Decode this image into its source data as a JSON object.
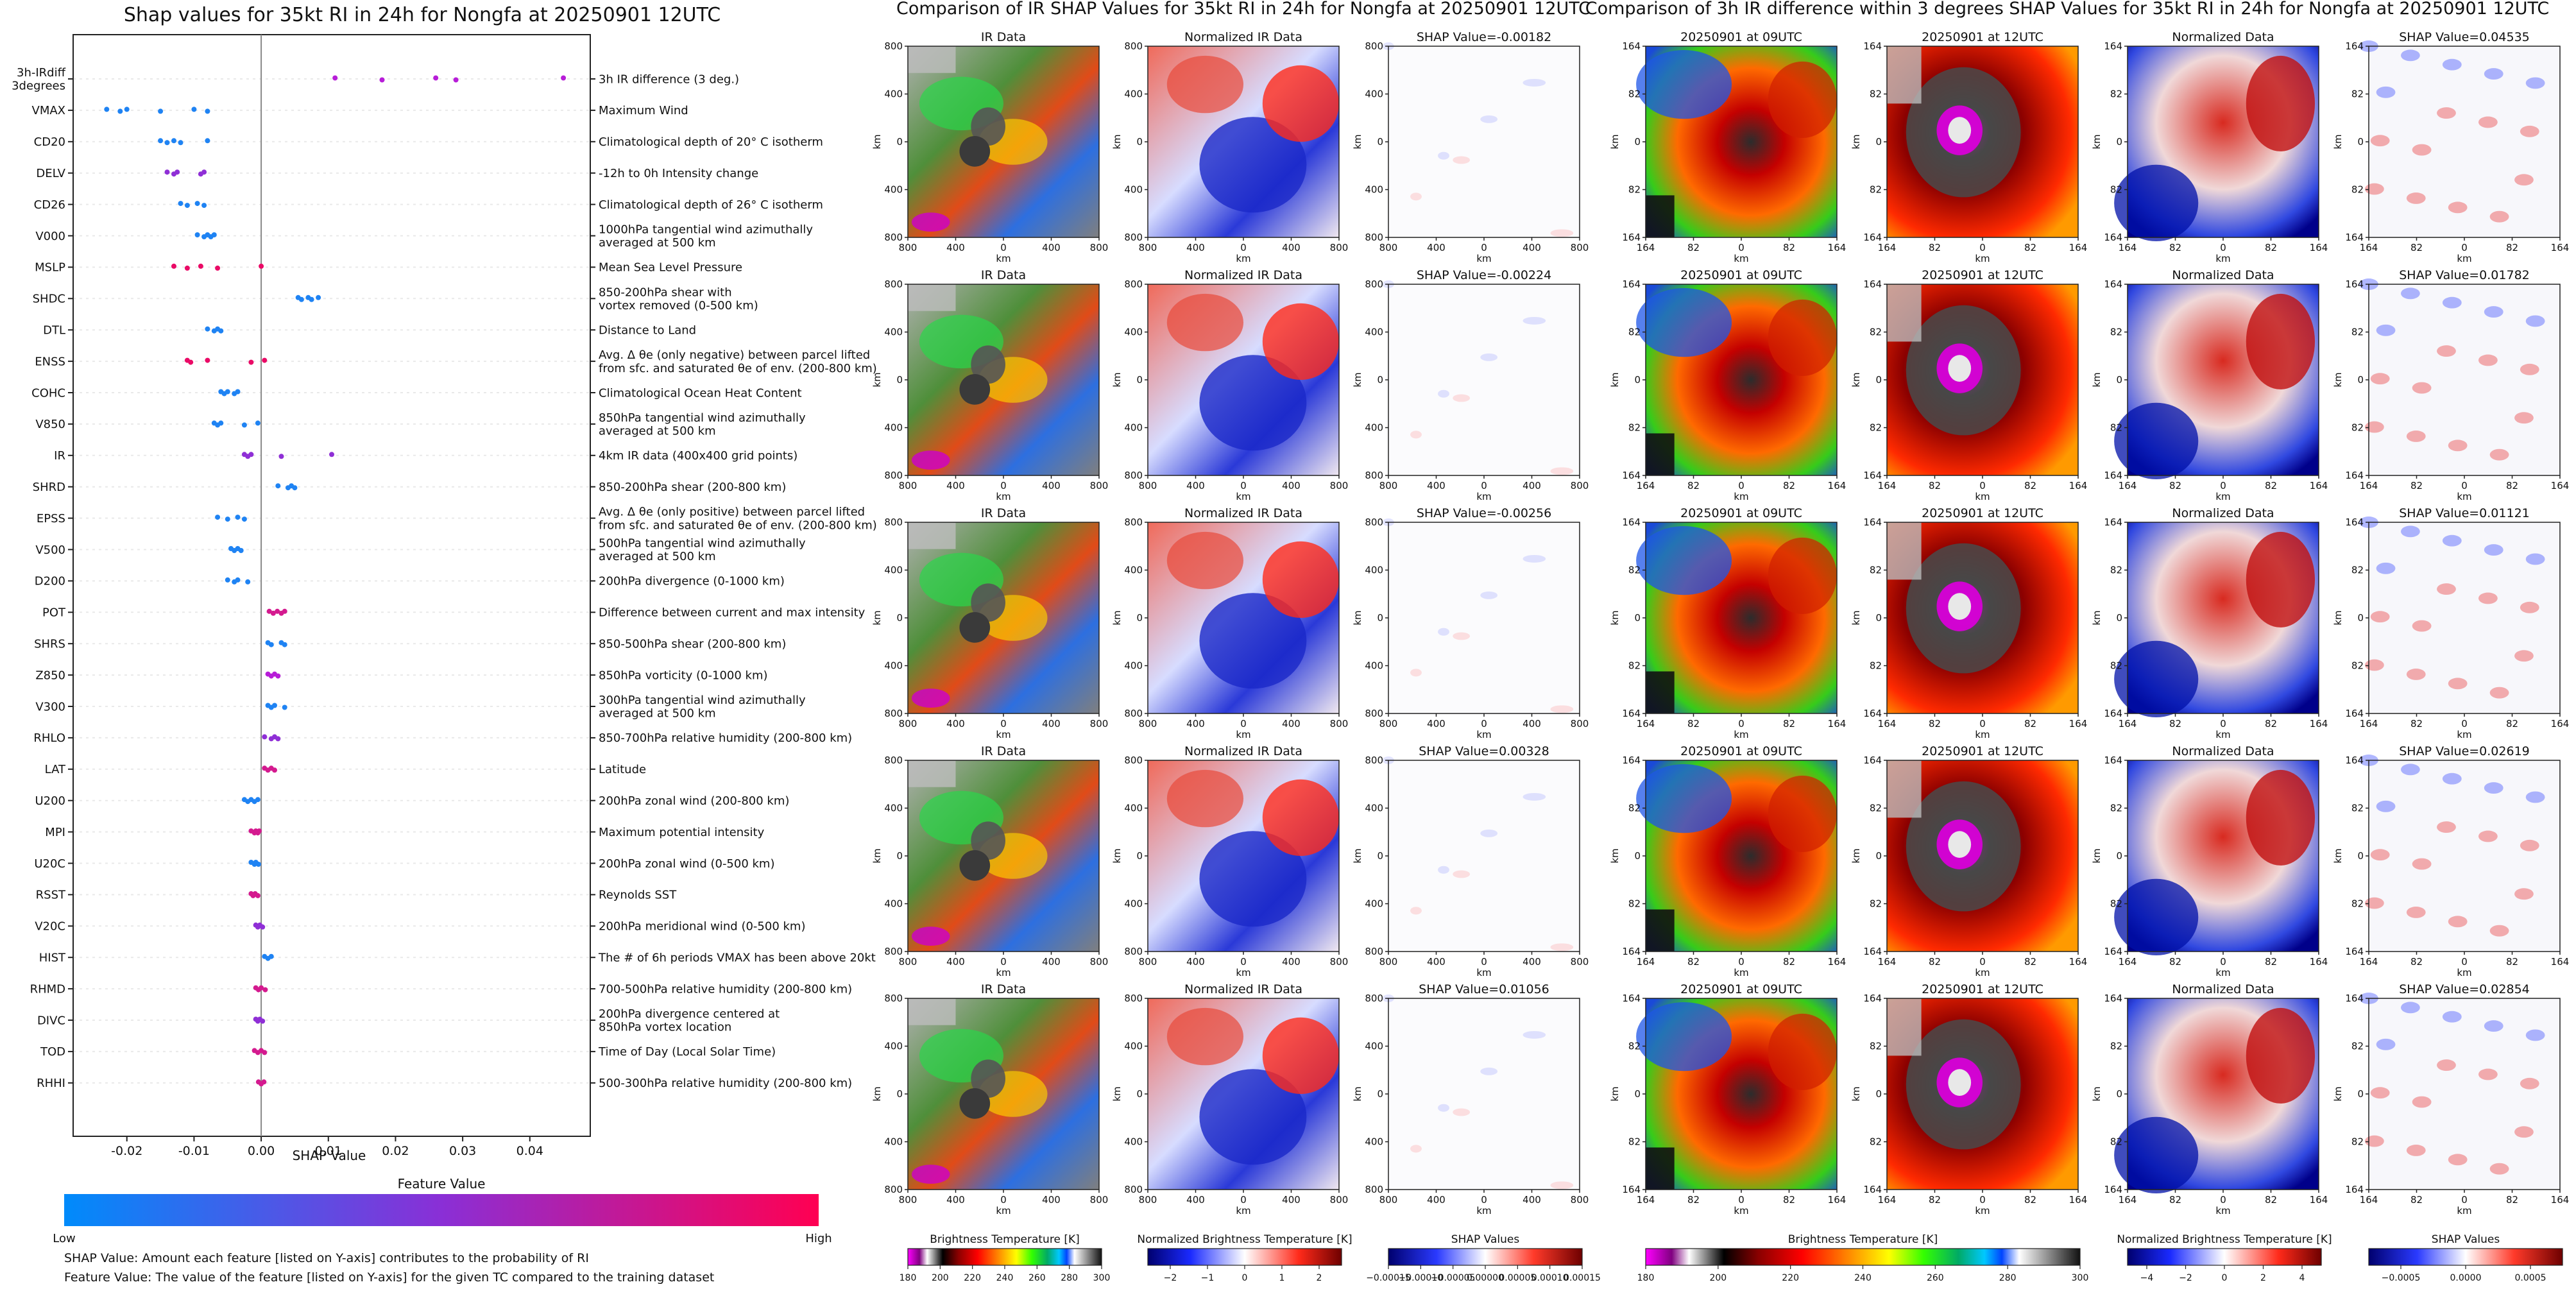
{
  "chart_data": [
    {
      "type": "scatter",
      "title": "Shap values for 35kt RI in 24h for Nongfa at 20250901 12UTC",
      "xlabel": "SHAP Value",
      "xlim": [
        -0.028,
        0.049
      ],
      "xticks": [
        "-0.02",
        "-0.01",
        "0.00",
        "0.01",
        "0.02",
        "0.03",
        "0.04"
      ],
      "xtick_values": [
        -0.02,
        -0.01,
        0.0,
        0.01,
        0.02,
        0.03,
        0.04
      ],
      "color_scale": {
        "low": "#008bfb",
        "high": "#ff0052"
      },
      "colorbar": {
        "title": "Feature Value",
        "low_label": "Low",
        "high_label": "High"
      },
      "features": [
        {
          "code": "3h-IRdiff\n3degrees",
          "description": "3h IR difference (3 deg.)",
          "color": "#b71dd8",
          "shap": [
            0.011,
            0.018,
            0.026,
            0.029,
            0.045
          ]
        },
        {
          "code": "VMAX",
          "description": "Maximum Wind",
          "color": "#1f83f3",
          "shap": [
            -0.023,
            -0.021,
            -0.02,
            -0.015,
            -0.01,
            -0.008
          ]
        },
        {
          "code": "CD20",
          "description": "Climatological depth of 20° C isotherm",
          "color": "#1f83f3",
          "shap": [
            -0.015,
            -0.014,
            -0.013,
            -0.012,
            -0.008
          ]
        },
        {
          "code": "DELV",
          "description": "-12h to 0h Intensity change",
          "color": "#8f2fd6",
          "shap": [
            -0.014,
            -0.013,
            -0.0125,
            -0.009,
            -0.0085
          ]
        },
        {
          "code": "CD26",
          "description": "Climatological depth of 26° C isotherm",
          "color": "#1f83f3",
          "shap": [
            -0.012,
            -0.011,
            -0.0095,
            -0.0085
          ]
        },
        {
          "code": "V000",
          "description": "1000hPa tangential wind azimuthally\naveraged at 500 km",
          "color": "#1f83f3",
          "shap": [
            -0.0095,
            -0.0085,
            -0.008,
            -0.0075,
            -0.007
          ]
        },
        {
          "code": "MSLP",
          "description": "Mean Sea Level Pressure",
          "color": "#ea0a66",
          "shap": [
            -0.013,
            -0.011,
            -0.009,
            -0.0065,
            0.0
          ]
        },
        {
          "code": "SHDC",
          "description": "850-200hPa shear with\nvortex removed (0-500 km)",
          "color": "#1f83f3",
          "shap": [
            0.0055,
            0.006,
            0.007,
            0.0075,
            0.0085
          ]
        },
        {
          "code": "DTL",
          "description": "Distance to Land",
          "color": "#1f83f3",
          "shap": [
            -0.008,
            -0.007,
            -0.0065,
            -0.006
          ]
        },
        {
          "code": "ENSS",
          "description": "Avg. Δ θe (only negative) between parcel lifted\nfrom sfc. and saturated θe of env. (200-800 km)",
          "color": "#ea0a66",
          "shap": [
            -0.011,
            -0.0105,
            -0.008,
            -0.0015,
            0.0005
          ]
        },
        {
          "code": "COHC",
          "description": "Climatological Ocean Heat Content",
          "color": "#1f83f3",
          "shap": [
            -0.006,
            -0.0055,
            -0.005,
            -0.004,
            -0.0035
          ]
        },
        {
          "code": "V850",
          "description": "850hPa tangential wind azimuthally\naveraged at 500 km",
          "color": "#1f83f3",
          "shap": [
            -0.007,
            -0.0065,
            -0.006,
            -0.0025,
            -0.0005
          ]
        },
        {
          "code": "IR",
          "description": "4km IR data (400x400 grid points)",
          "color": "#8f2fd6",
          "shap": [
            -0.0025,
            -0.002,
            -0.0015,
            0.003,
            0.0105
          ]
        },
        {
          "code": "SHRD",
          "description": "850-200hPa shear (200-800 km)",
          "color": "#1f83f3",
          "shap": [
            0.0025,
            0.004,
            0.0045,
            0.005
          ]
        },
        {
          "code": "EPSS",
          "description": "Avg. Δ θe (only positive) between parcel lifted\nfrom sfc. and saturated θe of env. (200-800 km)",
          "color": "#1f83f3",
          "shap": [
            -0.0065,
            -0.005,
            -0.0035,
            -0.0025
          ]
        },
        {
          "code": "V500",
          "description": "500hPa tangential wind azimuthally\naveraged at 500 km",
          "color": "#1f83f3",
          "shap": [
            -0.0045,
            -0.004,
            -0.0035,
            -0.003
          ]
        },
        {
          "code": "D200",
          "description": "200hPa divergence (0-1000 km)",
          "color": "#1f83f3",
          "shap": [
            -0.005,
            -0.004,
            -0.0035,
            -0.002
          ]
        },
        {
          "code": "POT",
          "description": "Difference between current and max intensity",
          "color": "#d41a8f",
          "shap": [
            0.0012,
            0.0018,
            0.0024,
            0.003,
            0.0035
          ]
        },
        {
          "code": "SHRS",
          "description": "850-500hPa shear (200-800 km)",
          "color": "#1f83f3",
          "shap": [
            0.001,
            0.0015,
            0.003,
            0.0035
          ]
        },
        {
          "code": "Z850",
          "description": "850hPa vorticity (0-1000 km)",
          "color": "#b71dd8",
          "shap": [
            0.001,
            0.0015,
            0.002,
            0.0025
          ]
        },
        {
          "code": "V300",
          "description": "300hPa tangential wind azimuthally\naveraged at 500 km",
          "color": "#1f83f3",
          "shap": [
            0.001,
            0.0015,
            0.002,
            0.0035
          ]
        },
        {
          "code": "RHLO",
          "description": "850-700hPa relative humidity (200-800 km)",
          "color": "#8f2fd6",
          "shap": [
            0.0005,
            0.0015,
            0.002,
            0.0025
          ]
        },
        {
          "code": "LAT",
          "description": "Latitude",
          "color": "#d41a8f",
          "shap": [
            0.0005,
            0.001,
            0.0015,
            0.002
          ]
        },
        {
          "code": "U200",
          "description": "200hPa zonal wind (200-800 km)",
          "color": "#1f83f3",
          "shap": [
            -0.0025,
            -0.002,
            -0.0015,
            -0.001,
            -0.0005
          ]
        },
        {
          "code": "MPI",
          "description": "Maximum potential intensity",
          "color": "#d41a8f",
          "shap": [
            -0.0015,
            -0.001,
            -0.0008,
            -0.0005,
            -0.0003
          ]
        },
        {
          "code": "U20C",
          "description": "200hPa zonal wind (0-500 km)",
          "color": "#1f83f3",
          "shap": [
            -0.0015,
            -0.001,
            -0.0008,
            -0.0004
          ]
        },
        {
          "code": "RSST",
          "description": "Reynolds SST",
          "color": "#d41a8f",
          "shap": [
            -0.0015,
            -0.0012,
            -0.0009,
            -0.0005
          ]
        },
        {
          "code": "V20C",
          "description": "200hPa meridional wind (0-500 km)",
          "color": "#8f2fd6",
          "shap": [
            -0.0008,
            -0.0005,
            -0.0002,
            0.0002
          ]
        },
        {
          "code": "HIST",
          "description": "The # of 6h periods VMAX has been above 20kt",
          "color": "#1f83f3",
          "shap": [
            0.0005,
            0.001,
            0.0015
          ]
        },
        {
          "code": "RHMD",
          "description": "700-500hPa relative humidity (200-800 km)",
          "color": "#d41a8f",
          "shap": [
            -0.0008,
            -0.0004,
            0.0,
            0.0006
          ]
        },
        {
          "code": "DIVC",
          "description": "200hPa divergence centered at\n850hPa vortex location",
          "color": "#8f2fd6",
          "shap": [
            -0.0008,
            -0.0005,
            -0.0002,
            0.0002
          ]
        },
        {
          "code": "TOD",
          "description": "Time of Day (Local Solar Time)",
          "color": "#d41a8f",
          "shap": [
            -0.001,
            -0.0005,
            0.0,
            0.0005
          ]
        },
        {
          "code": "RHHI",
          "description": "500-300hPa relative humidity (200-800 km)",
          "color": "#d41a8f",
          "shap": [
            -0.0004,
            0.0,
            0.0004
          ]
        }
      ]
    },
    {
      "type": "heatmap",
      "title": "Comparison of IR SHAP Values for 35kt RI in 24h for Nongfa at 20250901 12UTC",
      "column_titles": [
        "IR Data",
        "Normalized IR Data"
      ],
      "shap_titles": [
        "SHAP Value=-0.00182",
        "SHAP Value=-0.00224",
        "SHAP Value=-0.00256",
        "SHAP Value=0.00328",
        "SHAP Value=0.01056"
      ],
      "axis_label": "km",
      "x_ticks": [
        "800",
        "400",
        "0",
        "400",
        "800"
      ],
      "y_ticks": [
        "800",
        "400",
        "0",
        "400",
        "800"
      ],
      "colorbars": [
        {
          "label": "Brightness Temperature [K]",
          "ticks": [
            "180",
            "200",
            "220",
            "240",
            "260",
            "280",
            "300"
          ]
        },
        {
          "label": "Normalized Brightness Temperature [K]",
          "ticks": [
            "−2",
            "−1",
            "0",
            "1",
            "2"
          ]
        },
        {
          "label": "SHAP Values",
          "ticks": [
            "−0.00015",
            "−0.00010",
            "−0.00005",
            "0.00000",
            "0.00005",
            "0.00010",
            "0.00015"
          ]
        }
      ]
    },
    {
      "type": "heatmap",
      "title": "Comparison of 3h IR difference within 3 degrees SHAP Values for 35kt RI in 24h for Nongfa at 20250901 12UTC",
      "column_titles": [
        "20250901 at 09UTC",
        "20250901 at 12UTC",
        "Normalized Data"
      ],
      "shap_titles": [
        "SHAP Value=0.04535",
        "SHAP Value=0.01782",
        "SHAP Value=0.01121",
        "SHAP Value=0.02619",
        "SHAP Value=0.02854"
      ],
      "axis_label": "km",
      "x_ticks": [
        "164",
        "82",
        "0",
        "82",
        "164"
      ],
      "y_ticks": [
        "164",
        "82",
        "0",
        "82",
        "164"
      ],
      "colorbars": [
        {
          "label": "Brightness Temperature [K]",
          "ticks": [
            "180",
            "200",
            "220",
            "240",
            "260",
            "280",
            "300"
          ]
        },
        {
          "label": "Normalized Brightness Temperature [K]",
          "ticks": [
            "−4",
            "−2",
            "0",
            "2",
            "4"
          ]
        },
        {
          "label": "SHAP Values",
          "ticks": [
            "−0.0005",
            "0.0000",
            "0.0005"
          ]
        }
      ]
    }
  ],
  "footnotes": {
    "line1": "SHAP Value: Amount each feature [listed on Y-axis] contributes to the probability of RI",
    "line2": "Feature Value: The value of the feature [listed on Y-axis] for the given TC compared to the training dataset"
  }
}
